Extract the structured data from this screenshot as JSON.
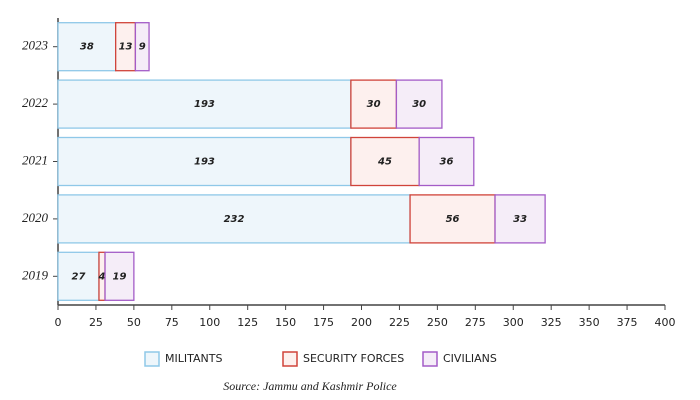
{
  "chart_data": {
    "type": "stacked-barh",
    "categories": [
      "2023",
      "2022",
      "2021",
      "2020",
      "2019"
    ],
    "series": [
      {
        "name": "MILITANTS",
        "color": "#8fc8e8",
        "fill": "#eef6fb",
        "values": [
          38,
          193,
          193,
          232,
          27
        ]
      },
      {
        "name": "SECURITY FORCES",
        "color": "#d0433a",
        "fill": "#fdf0ee",
        "values": [
          13,
          30,
          45,
          56,
          4
        ]
      },
      {
        "name": "CIVILIANS",
        "color": "#a35cc7",
        "fill": "#f5edf8",
        "values": [
          9,
          30,
          36,
          33,
          19
        ]
      }
    ],
    "xlim": [
      0,
      400
    ],
    "xticks": [
      0,
      25,
      50,
      75,
      100,
      125,
      150,
      175,
      200,
      225,
      250,
      275,
      300,
      325,
      350,
      375,
      400
    ],
    "source": "Source: Jammu and Kashmir Police"
  }
}
